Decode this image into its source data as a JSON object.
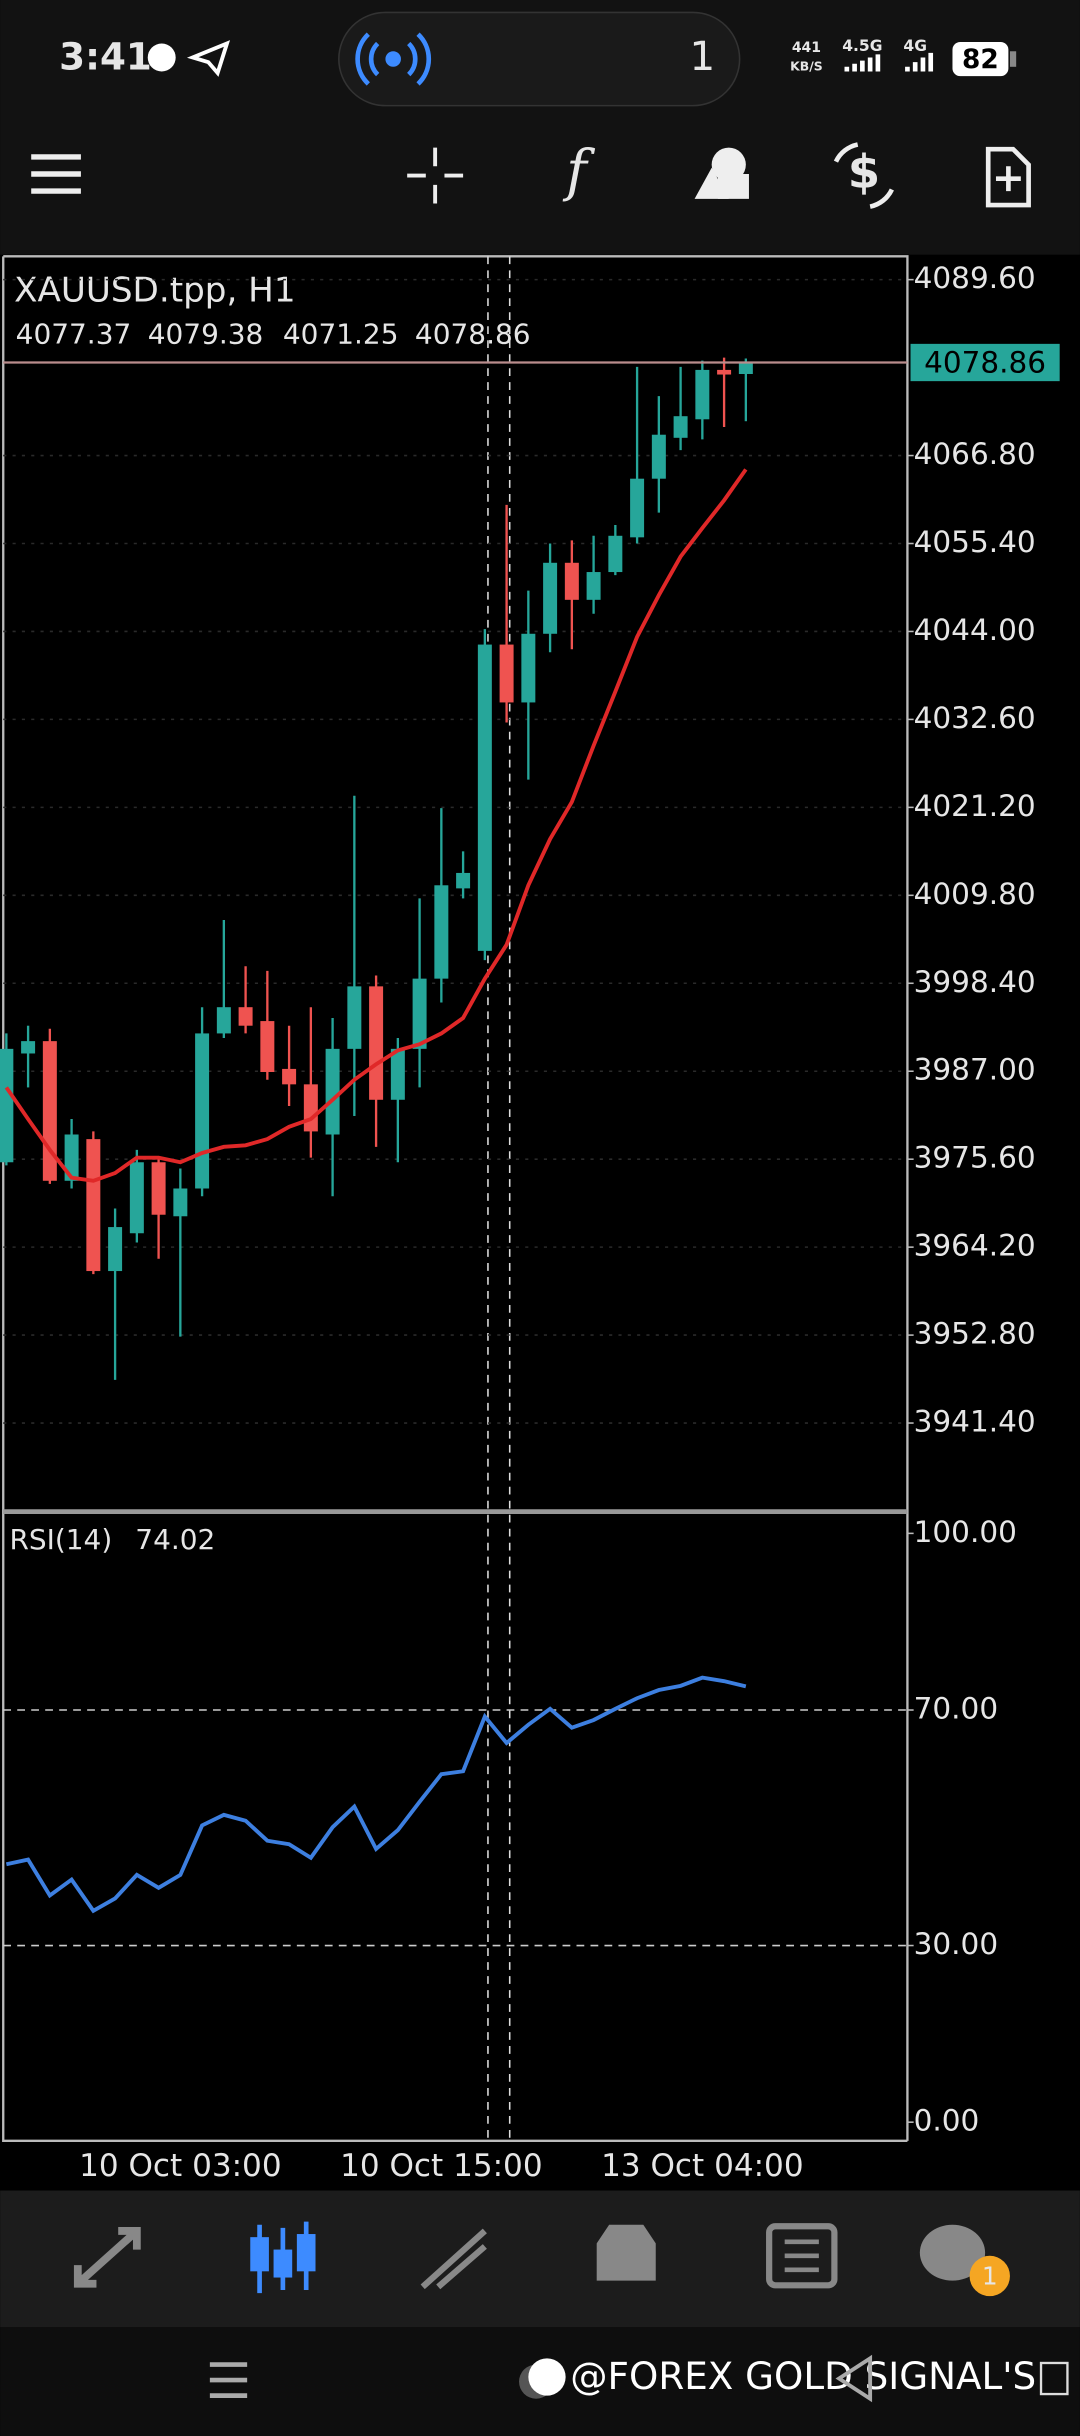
{
  "status_bar": {
    "time": "3:41",
    "notification_count": "1",
    "net_speed": "441",
    "net_speed_unit": "KB/S",
    "network_1": "4.5G",
    "network_2": "4G",
    "battery": "82"
  },
  "chart": {
    "type": "candlestick",
    "symbol_title": "XAUUSD.tpp, H1",
    "categories": [
      null,
      null,
      null,
      null,
      null,
      null,
      null,
      null,
      "10 Oct 03:00",
      null,
      null,
      null,
      null,
      null,
      null,
      null,
      null,
      null,
      null,
      null,
      "10 Oct 15:00",
      null,
      null,
      null,
      null,
      null,
      null,
      null,
      null,
      null,
      null,
      null,
      "13 Oct 04:00",
      null,
      null
    ],
    "open": [
      3975.2,
      3989.3,
      3990.9,
      3972.8,
      3978.2,
      3961.1,
      3966.0,
      3975.2,
      3968.2,
      3971.8,
      3991.9,
      3995.3,
      3993.5,
      3987.3,
      3985.3,
      3978.8,
      3989.9,
      3998.0,
      3983.3,
      3989.9,
      3999.0,
      4010.7,
      4002.6,
      4042.3,
      4034.8,
      4043.7,
      4052.9,
      4048.1,
      4051.7,
      4056.2,
      4063.8,
      4069.1,
      4071.5,
      4077.9,
      4077.37
    ],
    "high": [
      3991.9,
      3992.9,
      3992.5,
      3980.8,
      3979.2,
      3969.2,
      3976.8,
      3975.8,
      3974.4,
      3995.3,
      4006.6,
      4000.6,
      4000.0,
      3992.9,
      3995.3,
      3993.9,
      4022.7,
      3999.4,
      3991.3,
      4009.4,
      4021.1,
      4015.5,
      4044.3,
      4060.4,
      4049.3,
      4055.4,
      4055.8,
      4056.4,
      4057.8,
      4078.3,
      4074.5,
      4078.3,
      4079.1,
      4079.5,
      4079.38
    ],
    "low": [
      3974.8,
      3984.9,
      3972.4,
      3971.8,
      3960.7,
      3947.0,
      3964.8,
      3962.7,
      3952.6,
      3970.8,
      3991.3,
      3991.9,
      3985.9,
      3982.5,
      3975.8,
      3970.8,
      3981.2,
      3977.2,
      3975.2,
      3984.9,
      3995.9,
      4009.4,
      4001.4,
      4032.2,
      4024.8,
      4041.3,
      4041.7,
      4046.3,
      4051.3,
      4055.4,
      4059.4,
      4067.5,
      4068.9,
      4070.5,
      4071.25
    ],
    "close": [
      3989.9,
      3990.9,
      3972.8,
      3978.8,
      3961.1,
      3966.8,
      3975.2,
      3968.4,
      3971.8,
      3991.9,
      3995.3,
      3992.9,
      3986.9,
      3985.3,
      3979.2,
      3989.9,
      3998.0,
      3983.3,
      3989.9,
      3999.0,
      4011.1,
      4012.7,
      4042.3,
      4034.8,
      4043.7,
      4052.9,
      4048.1,
      4051.7,
      4056.4,
      4063.8,
      4069.5,
      4071.9,
      4077.9,
      4077.3,
      4078.86
    ],
    "up_color": "#26a69a",
    "down_color": "#ef5350",
    "ma": {
      "color": "#e02828",
      "values": [
        3984.9,
        3980.8,
        3976.8,
        3973.2,
        3972.8,
        3973.8,
        3975.8,
        3975.8,
        3975.2,
        3976.4,
        3977.2,
        3977.4,
        3978.2,
        3979.8,
        3980.8,
        3983.3,
        3985.9,
        3987.9,
        3989.7,
        3990.5,
        3991.9,
        3993.9,
        3999.0,
        4003.4,
        4011.1,
        4017.1,
        4021.9,
        4029.2,
        4036.2,
        4043.3,
        4048.7,
        4053.7,
        4057.4,
        4061.0,
        4065.0
      ]
    },
    "ylim": [
      3930.12,
      4092.62
    ],
    "yticks": [
      {
        "value": 4089.6,
        "label": "4089.60"
      },
      {
        "value": 4066.8,
        "label": "4066.80"
      },
      {
        "value": 4055.4,
        "label": "4055.40"
      },
      {
        "value": 4044.0,
        "label": "4044.00"
      },
      {
        "value": 4032.6,
        "label": "4032.60"
      },
      {
        "value": 4021.2,
        "label": "4021.20"
      },
      {
        "value": 4009.8,
        "label": "4009.80"
      },
      {
        "value": 3998.4,
        "label": "3998.40"
      },
      {
        "value": 3987.0,
        "label": "3987.00"
      },
      {
        "value": 3975.6,
        "label": "3975.60"
      },
      {
        "value": 3964.2,
        "label": "3964.20"
      },
      {
        "value": 3952.8,
        "label": "3952.80"
      },
      {
        "value": 3941.4,
        "label": "3941.40"
      }
    ],
    "grid": true
  },
  "rsi": {
    "type": "line",
    "label": "RSI(14)",
    "color": "#3d7fe0",
    "values": [
      43.8,
      44.6,
      38.5,
      41.2,
      35.9,
      38.0,
      42.0,
      39.8,
      42.0,
      50.4,
      52.2,
      51.2,
      47.8,
      47.2,
      44.9,
      50.1,
      53.6,
      46.4,
      49.6,
      54.4,
      59.1,
      59.6,
      68.9,
      64.4,
      67.5,
      70.2,
      67.0,
      68.3,
      70.2,
      72.0,
      73.4,
      74.1,
      75.5,
      74.9,
      74.02
    ],
    "ylim": [
      0,
      100
    ],
    "yticks": [
      {
        "value": 100,
        "label": "100.00"
      },
      {
        "value": 70,
        "label": "70.00"
      },
      {
        "value": 30,
        "label": "30.00"
      },
      {
        "value": 0,
        "label": "0.00"
      }
    ]
  },
  "bottom_nav": {
    "badge": "1"
  },
  "footer": {
    "watermark": "@FOREX GOLD SIGNAL'S"
  }
}
